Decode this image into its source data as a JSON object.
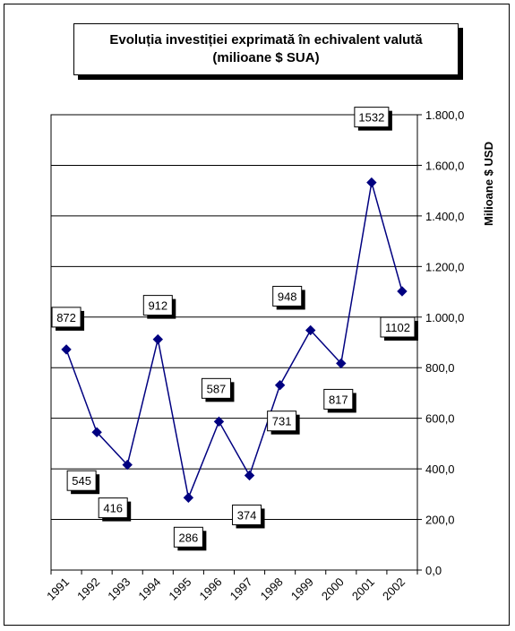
{
  "chart_data": {
    "type": "line",
    "title": "Evoluția investiției exprimată în echivalent valută",
    "subtitle": "(milioane $ SUA)",
    "ylabel": "Milioane $ USD",
    "xlabel": "",
    "categories": [
      "1991",
      "1992",
      "1993",
      "1994",
      "1995",
      "1996",
      "1997",
      "1998",
      "1999",
      "2000",
      "2001",
      "2002"
    ],
    "values": [
      872,
      545,
      416,
      912,
      286,
      587,
      374,
      731,
      948,
      817,
      1532,
      1102
    ],
    "data_labels": [
      "872",
      "545",
      "416",
      "912",
      "286",
      "587",
      "374",
      "731",
      "948",
      "817",
      "1532",
      "1102"
    ],
    "y_ticks": [
      "0,0",
      "200,0",
      "400,0",
      "600,0",
      "800,0",
      "1.000,0",
      "1.200,0",
      "1.400,0",
      "1.600,0",
      "1.800,0"
    ],
    "ylim": [
      0,
      1800
    ],
    "y_axis_side": "right",
    "grid": true,
    "legend": "none",
    "line_color": "#000080",
    "marker": "diamond"
  }
}
